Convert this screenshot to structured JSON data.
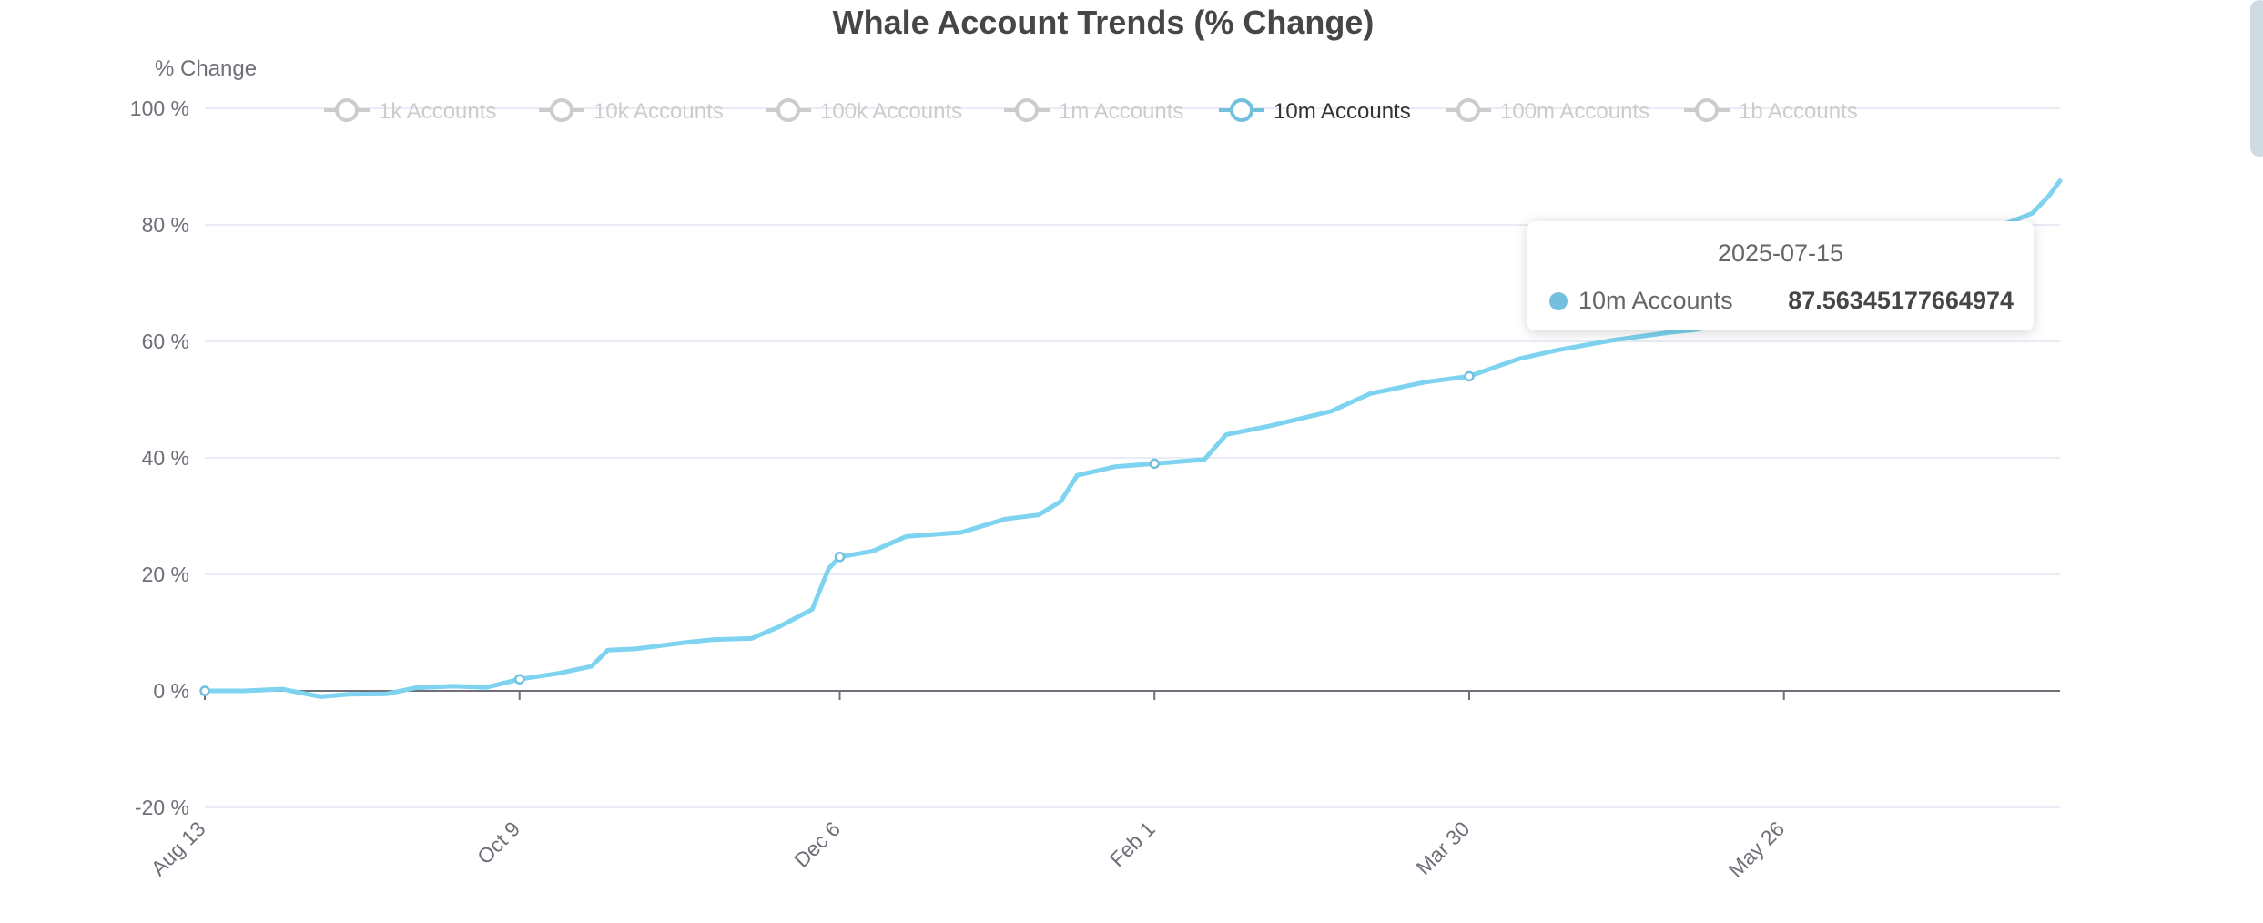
{
  "chart_data": {
    "type": "line",
    "title": "Whale Account Trends (% Change)",
    "ylabel": "% Change",
    "ylim": [
      -20,
      100
    ],
    "yticks": [
      "100 %",
      "80 %",
      "60 %",
      "40 %",
      "20 %",
      "0 %",
      "-20 %"
    ],
    "ytick_values": [
      100,
      80,
      60,
      40,
      20,
      0,
      -20
    ],
    "xticks": [
      "Aug 13",
      "Oct 9",
      "Dec 6",
      "Feb 1",
      "Mar 30",
      "May 26"
    ],
    "xtick_dates": [
      "2024-08-13",
      "2024-10-09",
      "2024-12-06",
      "2025-02-01",
      "2025-03-30",
      "2025-05-26"
    ],
    "xlim": [
      "2024-08-13",
      "2025-07-15"
    ],
    "grid": true,
    "legend_position": "top-center",
    "legend": [
      {
        "name": "1k Accounts",
        "active": false
      },
      {
        "name": "10k Accounts",
        "active": false
      },
      {
        "name": "100k Accounts",
        "active": false
      },
      {
        "name": "1m Accounts",
        "active": false
      },
      {
        "name": "10m Accounts",
        "active": true
      },
      {
        "name": "100m Accounts",
        "active": false
      },
      {
        "name": "1b Accounts",
        "active": false
      }
    ],
    "series": [
      {
        "name": "10m Accounts",
        "color": "#73c0de",
        "points": [
          [
            "2024-08-13",
            0.0
          ],
          [
            "2024-08-20",
            0.0
          ],
          [
            "2024-08-27",
            0.3
          ],
          [
            "2024-09-03",
            -1.0
          ],
          [
            "2024-09-08",
            -0.6
          ],
          [
            "2024-09-15",
            -0.5
          ],
          [
            "2024-09-20",
            0.5
          ],
          [
            "2024-09-27",
            0.8
          ],
          [
            "2024-10-03",
            0.6
          ],
          [
            "2024-10-09",
            2.0
          ],
          [
            "2024-10-16",
            3.0
          ],
          [
            "2024-10-22",
            4.2
          ],
          [
            "2024-10-25",
            7.0
          ],
          [
            "2024-10-30",
            7.2
          ],
          [
            "2024-11-08",
            8.3
          ],
          [
            "2024-11-13",
            8.8
          ],
          [
            "2024-11-20",
            9.0
          ],
          [
            "2024-11-25",
            11.0
          ],
          [
            "2024-11-28",
            12.5
          ],
          [
            "2024-12-01",
            14.0
          ],
          [
            "2024-12-04",
            21.0
          ],
          [
            "2024-12-06",
            23.0
          ],
          [
            "2024-12-12",
            24.0
          ],
          [
            "2024-12-18",
            26.5
          ],
          [
            "2024-12-28",
            27.2
          ],
          [
            "2025-01-05",
            29.5
          ],
          [
            "2025-01-11",
            30.2
          ],
          [
            "2025-01-15",
            32.5
          ],
          [
            "2025-01-18",
            37.0
          ],
          [
            "2025-01-25",
            38.5
          ],
          [
            "2025-02-01",
            39.0
          ],
          [
            "2025-02-10",
            39.7
          ],
          [
            "2025-02-14",
            44.0
          ],
          [
            "2025-02-22",
            45.5
          ],
          [
            "2025-03-05",
            48.0
          ],
          [
            "2025-03-12",
            51.0
          ],
          [
            "2025-03-22",
            53.0
          ],
          [
            "2025-03-30",
            54.0
          ],
          [
            "2025-04-08",
            57.0
          ],
          [
            "2025-04-15",
            58.5
          ],
          [
            "2025-04-25",
            60.2
          ],
          [
            "2025-05-05",
            61.5
          ],
          [
            "2025-05-10",
            62.0
          ],
          [
            "2025-05-20",
            64.0
          ],
          [
            "2025-06-01",
            67.5
          ],
          [
            "2025-06-12",
            72.0
          ],
          [
            "2025-06-25",
            77.0
          ],
          [
            "2025-07-06",
            80.5
          ],
          [
            "2025-07-10",
            82.0
          ],
          [
            "2025-07-13",
            85.0
          ],
          [
            "2025-07-15",
            87.56345177664974
          ]
        ],
        "markers": [
          [
            "2024-08-13",
            0.0
          ],
          [
            "2024-10-09",
            2.0
          ],
          [
            "2024-12-06",
            23.0
          ],
          [
            "2025-02-01",
            39.0
          ],
          [
            "2025-03-30",
            54.0
          ]
        ]
      }
    ],
    "tooltip": {
      "date": "2025-07-15",
      "series": "10m Accounts",
      "value": "87.56345177664974",
      "color": "#73c0de"
    },
    "colors": {
      "line": "#7dd3f0",
      "legend_active": "#73c0de",
      "legend_inactive": "#cccccc",
      "legend_text_active": "#333333",
      "axis": "#6e7079",
      "grid": "#e0e6f1"
    }
  }
}
